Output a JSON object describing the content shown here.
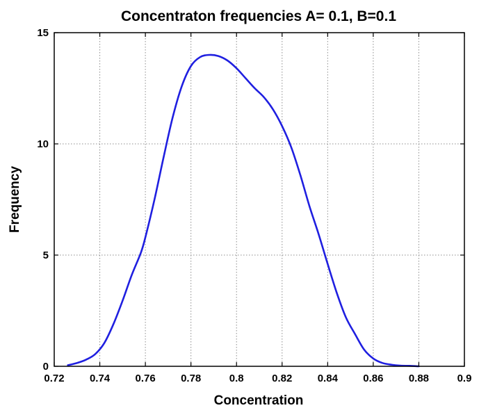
{
  "chart_data": {
    "type": "line",
    "title": "Concentraton frequencies   A= 0.1, B=0.1",
    "xlabel": "Concentration",
    "ylabel": "Frequency",
    "xlim": [
      0.72,
      0.9
    ],
    "ylim": [
      0,
      15
    ],
    "xticks": [
      "0.72",
      "0.74",
      "0.76",
      "0.78",
      "0.8",
      "0.82",
      "0.84",
      "0.86",
      "0.88",
      "0.9"
    ],
    "yticks": [
      "0",
      "5",
      "10",
      "15"
    ],
    "grid": true,
    "series": [
      {
        "color": "#1f1fe0",
        "x": [
          0.726,
          0.73,
          0.734,
          0.738,
          0.742,
          0.746,
          0.75,
          0.754,
          0.758,
          0.76,
          0.764,
          0.768,
          0.772,
          0.776,
          0.78,
          0.784,
          0.788,
          0.792,
          0.796,
          0.8,
          0.804,
          0.808,
          0.812,
          0.816,
          0.82,
          0.824,
          0.828,
          0.832,
          0.836,
          0.84,
          0.844,
          0.848,
          0.852,
          0.856,
          0.86,
          0.864,
          0.868,
          0.872,
          0.876,
          0.88
        ],
        "y": [
          0.05,
          0.15,
          0.3,
          0.55,
          1.05,
          1.9,
          2.95,
          4.1,
          5.1,
          5.8,
          7.5,
          9.4,
          11.2,
          12.6,
          13.5,
          13.9,
          14.0,
          13.95,
          13.75,
          13.4,
          12.95,
          12.5,
          12.1,
          11.55,
          10.8,
          9.85,
          8.6,
          7.2,
          5.95,
          4.6,
          3.3,
          2.2,
          1.45,
          0.75,
          0.35,
          0.15,
          0.07,
          0.03,
          0.02,
          0.0
        ]
      }
    ]
  }
}
